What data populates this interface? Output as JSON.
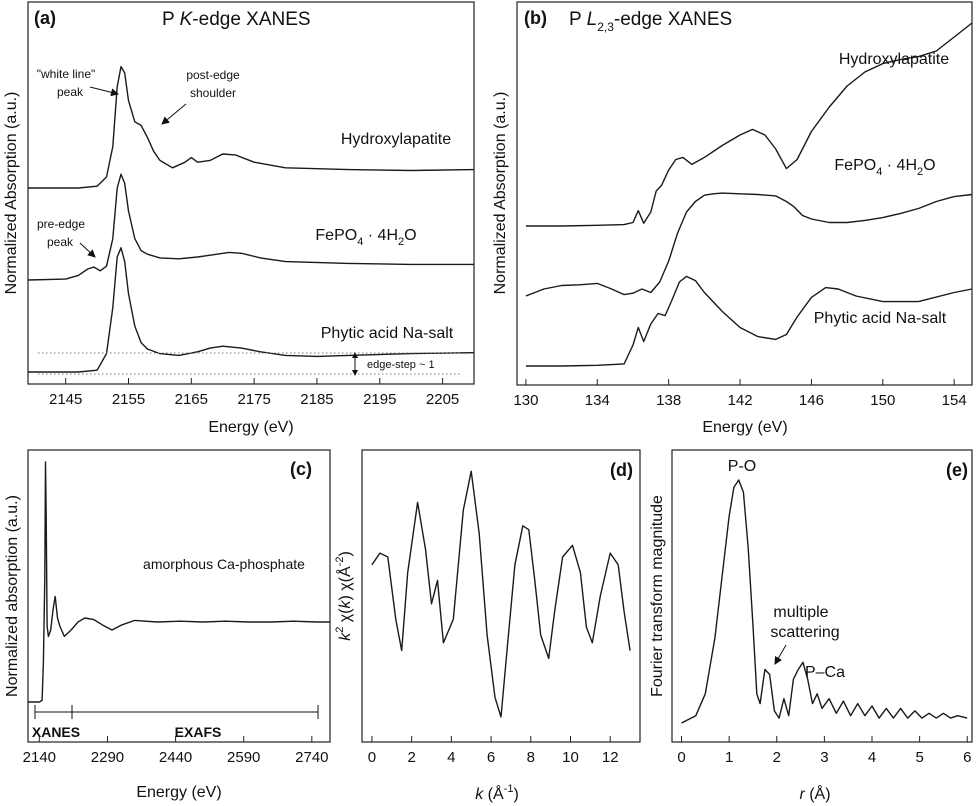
{
  "chart_data": [
    {
      "panel": "(a)",
      "type": "line",
      "title": "P K-edge XANES",
      "title_plain": "P ",
      "title_italic": "K",
      "title_rest": "-edge XANES",
      "xlabel": "Energy (eV)",
      "ylabel": "Normalized Absorption (a.u.)",
      "xlim": [
        2139,
        2210
      ],
      "xticks": [
        2145,
        2155,
        2165,
        2175,
        2185,
        2195,
        2205
      ],
      "series": [
        {
          "name": "Hydroxylapatite",
          "offset": 2.0,
          "x": [
            2139,
            2147,
            2150,
            2151.5,
            2152.5,
            2153.2,
            2153.8,
            2154.4,
            2155,
            2156,
            2157,
            2158,
            2159,
            2160,
            2162,
            2164,
            2165,
            2166,
            2168,
            2170,
            2172,
            2175,
            2180,
            2190,
            2200,
            2210
          ],
          "y": [
            0,
            0,
            0.02,
            0.12,
            0.45,
            1.1,
            1.32,
            1.25,
            0.95,
            0.72,
            0.68,
            0.55,
            0.4,
            0.3,
            0.22,
            0.28,
            0.33,
            0.28,
            0.3,
            0.37,
            0.36,
            0.28,
            0.22,
            0.2,
            0.19,
            0.2
          ]
        },
        {
          "name": "FePO4 · 4H2O",
          "offset": 1.0,
          "x": [
            2139,
            2145,
            2147,
            2148.5,
            2149.5,
            2150.5,
            2151.5,
            2152.5,
            2153.2,
            2153.8,
            2154.4,
            2155,
            2156,
            2157,
            2158,
            2160,
            2163,
            2166,
            2168,
            2171,
            2173,
            2176,
            2180,
            2190,
            2200,
            2210
          ],
          "y": [
            0,
            0.01,
            0.05,
            0.12,
            0.14,
            0.1,
            0.15,
            0.45,
            1.0,
            1.15,
            1.05,
            0.75,
            0.45,
            0.32,
            0.28,
            0.24,
            0.23,
            0.25,
            0.27,
            0.3,
            0.29,
            0.24,
            0.2,
            0.18,
            0.17,
            0.17
          ]
        },
        {
          "name": "Phytic acid Na-salt",
          "offset": 0.0,
          "x": [
            2139,
            2147,
            2150,
            2151.5,
            2152.5,
            2153.2,
            2153.8,
            2154.4,
            2155,
            2156,
            2157,
            2158,
            2160,
            2163,
            2166,
            2168,
            2170,
            2173,
            2176,
            2180,
            2185,
            2190,
            2200,
            2210
          ],
          "y": [
            0,
            0,
            0.02,
            0.2,
            0.7,
            1.25,
            1.35,
            1.2,
            0.85,
            0.5,
            0.32,
            0.25,
            0.2,
            0.18,
            0.22,
            0.26,
            0.28,
            0.26,
            0.22,
            0.18,
            0.17,
            0.18,
            0.2,
            0.21
          ]
        }
      ],
      "annotations": {
        "white_line_1": "\"white line\"",
        "white_line_2": "peak",
        "post_edge_1": "post-edge",
        "post_edge_2": "shoulder",
        "pre_edge_1": "pre-edge",
        "pre_edge_2": "peak",
        "edge_step": "edge-step ~ 1"
      },
      "label_hydroxylapatite": "Hydroxylapatite",
      "label_fepo4_a": "FePO",
      "label_fepo4_b": "4",
      "label_fepo4_c": " · 4H",
      "label_fepo4_d": "2",
      "label_fepo4_e": "O",
      "label_phytic": "Phytic acid Na-salt"
    },
    {
      "panel": "(b)",
      "type": "line",
      "title_plain": "P ",
      "title_italic": "L",
      "title_sub": "2,3",
      "title_rest": "-edge XANES",
      "xlabel": "Energy (eV)",
      "ylabel": "Normalized Absorption (a.u.)",
      "xlim": [
        129.5,
        155
      ],
      "xticks": [
        130,
        134,
        138,
        142,
        146,
        150,
        154
      ],
      "series": [
        {
          "name": "Hydroxylapatite",
          "offset": 2.0,
          "x": [
            130,
            132,
            134,
            135.5,
            136,
            136.3,
            136.6,
            137,
            137.3,
            137.6,
            138,
            138.4,
            138.8,
            139.3,
            140,
            141,
            142,
            142.7,
            143.4,
            144,
            144.6,
            145.2,
            146,
            147,
            148,
            149,
            150,
            151,
            152,
            153,
            154,
            155
          ],
          "y": [
            0,
            0,
            0.01,
            0.02,
            0.05,
            0.22,
            0.04,
            0.2,
            0.5,
            0.58,
            0.8,
            0.95,
            0.98,
            0.88,
            0.98,
            1.15,
            1.3,
            1.38,
            1.3,
            1.1,
            0.82,
            0.95,
            1.35,
            1.7,
            2.0,
            2.2,
            2.32,
            2.38,
            2.42,
            2.5,
            2.7,
            2.9
          ]
        },
        {
          "name": "FePO4 · 4H2O",
          "offset": 1.0,
          "x": [
            130,
            131,
            132,
            133,
            134,
            134.8,
            135.5,
            136,
            136.5,
            137,
            137.5,
            138,
            138.5,
            139,
            139.5,
            140,
            140.5,
            141,
            142,
            143,
            144,
            144.6,
            145,
            145.5,
            146,
            147,
            148,
            149,
            150,
            151,
            152,
            153,
            154,
            155
          ],
          "y": [
            0,
            0.1,
            0.15,
            0.16,
            0.18,
            0.1,
            0.02,
            0.04,
            0.1,
            0.05,
            0.2,
            0.5,
            0.9,
            1.2,
            1.35,
            1.44,
            1.46,
            1.47,
            1.46,
            1.45,
            1.43,
            1.35,
            1.28,
            1.15,
            1.1,
            1.05,
            1.05,
            1.08,
            1.12,
            1.18,
            1.25,
            1.35,
            1.42,
            1.45
          ]
        },
        {
          "name": "Phytic acid Na-salt",
          "offset": 0.0,
          "x": [
            130,
            132,
            134,
            135.5,
            136,
            136.3,
            136.6,
            137,
            137.4,
            137.8,
            138.2,
            138.6,
            139,
            139.5,
            140,
            141,
            142,
            143,
            144,
            144.6,
            145.2,
            146,
            146.8,
            147.5,
            148.5,
            150,
            152,
            154,
            155
          ],
          "y": [
            0,
            0,
            0.01,
            0.03,
            0.3,
            0.55,
            0.35,
            0.6,
            0.75,
            0.72,
            0.95,
            1.2,
            1.28,
            1.22,
            1.05,
            0.78,
            0.55,
            0.42,
            0.38,
            0.45,
            0.7,
            0.98,
            1.12,
            1.1,
            1.0,
            0.92,
            0.92,
            1.05,
            1.1
          ]
        }
      ],
      "label_hydroxylapatite": "Hydroxylapatite",
      "label_fepo4_a": "FePO",
      "label_fepo4_b": "4",
      "label_fepo4_c": " · 4H",
      "label_fepo4_d": "2",
      "label_fepo4_e": "O",
      "label_phytic": "Phytic acid Na-salt"
    },
    {
      "panel": "(c)",
      "type": "line",
      "xlabel": "Energy (eV)",
      "ylabel": "Normalized absorption (a.u.)",
      "xlim": [
        2115,
        2780
      ],
      "xticks": [
        2140,
        2290,
        2440,
        2590,
        2740
      ],
      "series": [
        {
          "name": "amorphous Ca-phosphate",
          "x": [
            2115,
            2140,
            2146,
            2149,
            2152,
            2153.5,
            2155,
            2157,
            2160,
            2165,
            2170,
            2175,
            2180,
            2185,
            2195,
            2210,
            2225,
            2240,
            2260,
            2280,
            2300,
            2320,
            2350,
            2400,
            2450,
            2500,
            2550,
            2600,
            2650,
            2700,
            2750,
            2780
          ],
          "y": [
            0,
            0,
            0.02,
            0.5,
            1.55,
            3.0,
            2.3,
            0.95,
            0.82,
            0.9,
            1.15,
            1.32,
            1.05,
            0.95,
            0.82,
            0.9,
            1.0,
            1.05,
            1.03,
            0.96,
            0.9,
            0.96,
            1.02,
            1.0,
            1.01,
            1.0,
            1.01,
            1.0,
            1.0,
            1.01,
            1.0,
            1.0
          ]
        }
      ],
      "xanes_label": "XANES",
      "exafs_label": "EXAFS"
    },
    {
      "panel": "(d)",
      "type": "line",
      "xlabel_italic": "k",
      "xlabel_rest": " (Å",
      "xlabel_sup": "-1",
      "xlabel_close": ")",
      "ylabel_parts": [
        "k",
        "2",
        " χ(",
        "k",
        ")  χ(Å",
        "-2",
        ")"
      ],
      "xlim": [
        -0.5,
        13.5
      ],
      "xticks": [
        0,
        2,
        4,
        6,
        8,
        10,
        12
      ],
      "series": [
        {
          "name": "chi",
          "x": [
            0,
            0.4,
            0.8,
            1.2,
            1.5,
            1.8,
            2.3,
            2.7,
            3.0,
            3.3,
            3.6,
            4.1,
            4.6,
            5.0,
            5.4,
            5.8,
            6.2,
            6.5,
            6.8,
            7.2,
            7.6,
            7.9,
            8.2,
            8.5,
            8.9,
            9.2,
            9.6,
            10.1,
            10.5,
            10.8,
            11.1,
            11.5,
            12.0,
            12.4,
            12.7,
            13.0
          ],
          "y": [
            0.4,
            0.55,
            0.5,
            -0.3,
            -0.7,
            0.3,
            1.2,
            0.6,
            -0.1,
            0.2,
            -0.6,
            -0.3,
            1.1,
            1.6,
            0.8,
            -0.5,
            -1.3,
            -1.55,
            -0.7,
            0.4,
            0.9,
            0.85,
            0.2,
            -0.5,
            -0.8,
            -0.2,
            0.5,
            0.65,
            0.3,
            -0.4,
            -0.6,
            0.0,
            0.55,
            0.4,
            -0.2,
            -0.7
          ]
        }
      ]
    },
    {
      "panel": "(e)",
      "type": "line",
      "xlabel_italic": "r",
      "xlabel_rest": " (Å)",
      "ylabel": "Fourier transform magnitude",
      "xlim": [
        -0.2,
        6.1
      ],
      "xticks": [
        0,
        1,
        2,
        3,
        4,
        5,
        6
      ],
      "series": [
        {
          "name": "FT",
          "x": [
            0,
            0.3,
            0.5,
            0.7,
            0.85,
            1.0,
            1.1,
            1.2,
            1.3,
            1.4,
            1.5,
            1.58,
            1.65,
            1.75,
            1.85,
            1.95,
            2.05,
            2.15,
            2.25,
            2.35,
            2.45,
            2.55,
            2.65,
            2.75,
            2.85,
            2.95,
            3.1,
            3.25,
            3.4,
            3.55,
            3.7,
            3.85,
            4.0,
            4.15,
            4.3,
            4.45,
            4.6,
            4.75,
            4.9,
            5.05,
            5.2,
            5.35,
            5.5,
            5.65,
            5.8,
            6.0
          ],
          "y": [
            0.0,
            0.03,
            0.12,
            0.35,
            0.6,
            0.85,
            0.97,
            1.0,
            0.95,
            0.72,
            0.4,
            0.12,
            0.08,
            0.22,
            0.2,
            0.05,
            0.02,
            0.1,
            0.03,
            0.18,
            0.22,
            0.25,
            0.18,
            0.08,
            0.12,
            0.06,
            0.1,
            0.04,
            0.09,
            0.03,
            0.08,
            0.03,
            0.07,
            0.02,
            0.06,
            0.02,
            0.06,
            0.02,
            0.05,
            0.02,
            0.04,
            0.02,
            0.04,
            0.02,
            0.03,
            0.02
          ]
        }
      ],
      "peak_po": "P-O",
      "peak_pca": "P–Ca",
      "multiple_1": "multiple",
      "multiple_2": "scattering"
    }
  ]
}
